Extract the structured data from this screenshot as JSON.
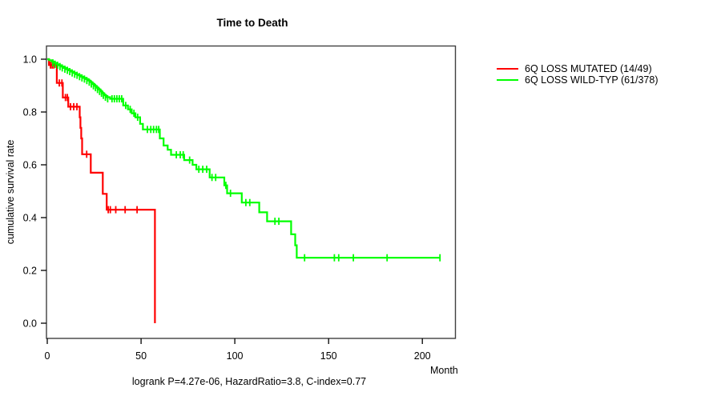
{
  "title": "Time to Death",
  "caption": "logrank P=4.27e-06, HazardRatio=3.8, C-index=0.77",
  "legend": [
    {
      "label": "6Q LOSS MUTATED (14/49)",
      "color": "#ff0000"
    },
    {
      "label": "6Q LOSS WILD-TYP (61/378)",
      "color": "#00ff00"
    }
  ],
  "chart_data": {
    "type": "line",
    "subtype": "kaplan-meier-step",
    "title": "Time to Death",
    "xlabel": "Month",
    "ylabel": "cumulative survival rate",
    "xlim": [
      0,
      218
    ],
    "ylim": [
      0.0,
      1.0
    ],
    "grid": false,
    "legend_position": "top-right-outside",
    "axes": {
      "x": {
        "tick_labels": [
          "0",
          "50",
          "100",
          "150",
          "200"
        ],
        "tick_values": [
          0,
          50,
          100,
          150,
          200
        ]
      },
      "y": {
        "tick_labels": [
          "0.0",
          "0.2",
          "0.4",
          "0.6",
          "0.8",
          "1.0"
        ],
        "tick_values": [
          0.0,
          0.2,
          0.4,
          0.6,
          0.8,
          1.0
        ]
      }
    },
    "series": [
      {
        "name": "6Q LOSS MUTATED (14/49)",
        "color": "#ff0000",
        "end_month": 57.4,
        "steps": [
          [
            0,
            1.0
          ],
          [
            0.9,
            0.978
          ],
          [
            5.1,
            0.91
          ],
          [
            8.3,
            0.855
          ],
          [
            11.2,
            0.82
          ],
          [
            17.3,
            0.78
          ],
          [
            17.7,
            0.74
          ],
          [
            18.1,
            0.7
          ],
          [
            18.6,
            0.64
          ],
          [
            23.2,
            0.57
          ],
          [
            29.6,
            0.49
          ],
          [
            31.7,
            0.43
          ],
          [
            57.4,
            0.0
          ]
        ],
        "censor_marks": [
          [
            1.7,
            0.978
          ],
          [
            2.6,
            0.978
          ],
          [
            3.5,
            0.978
          ],
          [
            6.4,
            0.91
          ],
          [
            7.8,
            0.91
          ],
          [
            9.7,
            0.855
          ],
          [
            10.7,
            0.855
          ],
          [
            12.4,
            0.82
          ],
          [
            14.1,
            0.82
          ],
          [
            15.8,
            0.82
          ],
          [
            21,
            0.64
          ],
          [
            32.5,
            0.43
          ],
          [
            33.6,
            0.43
          ],
          [
            36.5,
            0.43
          ],
          [
            41.5,
            0.43
          ],
          [
            47.9,
            0.43
          ]
        ]
      },
      {
        "name": "6Q LOSS WILD-TYP (61/378)",
        "color": "#00ff00",
        "end_month": 209.4,
        "steps": [
          [
            0,
            1.0
          ],
          [
            1,
            0.996
          ],
          [
            2.3,
            0.991
          ],
          [
            3.6,
            0.986
          ],
          [
            4.9,
            0.981
          ],
          [
            6.2,
            0.977
          ],
          [
            7.5,
            0.972
          ],
          [
            8.8,
            0.967
          ],
          [
            10.1,
            0.962
          ],
          [
            11.4,
            0.958
          ],
          [
            12.7,
            0.953
          ],
          [
            14,
            0.948
          ],
          [
            15.3,
            0.943
          ],
          [
            16.6,
            0.939
          ],
          [
            17.9,
            0.934
          ],
          [
            19.2,
            0.929
          ],
          [
            20.5,
            0.925
          ],
          [
            21.8,
            0.919
          ],
          [
            23,
            0.913
          ],
          [
            24.1,
            0.906
          ],
          [
            25.2,
            0.899
          ],
          [
            26.3,
            0.892
          ],
          [
            27.4,
            0.885
          ],
          [
            28.4,
            0.878
          ],
          [
            29.4,
            0.871
          ],
          [
            30.4,
            0.863
          ],
          [
            31.5,
            0.856
          ],
          [
            33.5,
            0.85
          ],
          [
            40.5,
            0.825
          ],
          [
            43,
            0.81
          ],
          [
            45,
            0.795
          ],
          [
            47,
            0.78
          ],
          [
            49.5,
            0.755
          ],
          [
            51,
            0.734
          ],
          [
            60,
            0.7
          ],
          [
            62,
            0.673
          ],
          [
            64.2,
            0.657
          ],
          [
            66,
            0.638
          ],
          [
            73,
            0.618
          ],
          [
            77.5,
            0.6
          ],
          [
            79.5,
            0.583
          ],
          [
            86.6,
            0.552
          ],
          [
            94.4,
            0.522
          ],
          [
            95.9,
            0.492
          ],
          [
            103.7,
            0.457
          ],
          [
            113,
            0.42
          ],
          [
            117.2,
            0.386
          ],
          [
            130,
            0.337
          ],
          [
            132.2,
            0.295
          ],
          [
            133,
            0.248
          ]
        ],
        "censor_marks": [
          [
            3,
            0.986
          ],
          [
            4.2,
            0.981
          ],
          [
            5.5,
            0.977
          ],
          [
            6.8,
            0.972
          ],
          [
            8,
            0.967
          ],
          [
            9.4,
            0.962
          ],
          [
            10.7,
            0.958
          ],
          [
            12,
            0.953
          ],
          [
            13.3,
            0.948
          ],
          [
            14.6,
            0.943
          ],
          [
            15.9,
            0.939
          ],
          [
            17.2,
            0.934
          ],
          [
            18.5,
            0.929
          ],
          [
            19.8,
            0.925
          ],
          [
            21.1,
            0.919
          ],
          [
            22.4,
            0.913
          ],
          [
            23.5,
            0.906
          ],
          [
            24.6,
            0.899
          ],
          [
            25.7,
            0.892
          ],
          [
            26.8,
            0.885
          ],
          [
            27.9,
            0.878
          ],
          [
            28.9,
            0.871
          ],
          [
            29.9,
            0.863
          ],
          [
            31,
            0.856
          ],
          [
            32.2,
            0.85
          ],
          [
            34.5,
            0.85
          ],
          [
            35.8,
            0.85
          ],
          [
            37.1,
            0.85
          ],
          [
            38.4,
            0.85
          ],
          [
            39.7,
            0.85
          ],
          [
            41.8,
            0.825
          ],
          [
            44.2,
            0.81
          ],
          [
            46.2,
            0.795
          ],
          [
            48.2,
            0.78
          ],
          [
            53.4,
            0.734
          ],
          [
            55.2,
            0.734
          ],
          [
            56.7,
            0.734
          ],
          [
            58.2,
            0.734
          ],
          [
            59.4,
            0.734
          ],
          [
            68.8,
            0.638
          ],
          [
            70.9,
            0.638
          ],
          [
            72.5,
            0.638
          ],
          [
            75.9,
            0.618
          ],
          [
            80.8,
            0.583
          ],
          [
            82.9,
            0.583
          ],
          [
            85,
            0.583
          ],
          [
            87.8,
            0.552
          ],
          [
            89.8,
            0.552
          ],
          [
            95.2,
            0.522
          ],
          [
            97.7,
            0.492
          ],
          [
            105.9,
            0.457
          ],
          [
            108,
            0.457
          ],
          [
            121.4,
            0.386
          ],
          [
            123.5,
            0.386
          ],
          [
            137.2,
            0.248
          ],
          [
            153.1,
            0.248
          ],
          [
            155.4,
            0.248
          ],
          [
            163.2,
            0.248
          ],
          [
            181.2,
            0.248
          ],
          [
            209.4,
            0.248
          ]
        ]
      }
    ]
  }
}
